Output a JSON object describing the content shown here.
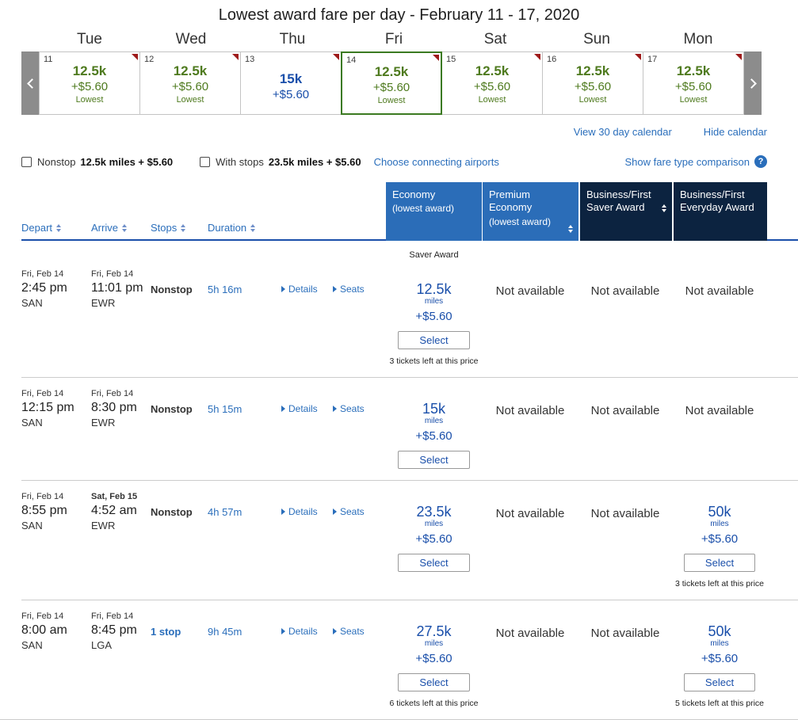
{
  "colors": {
    "fare_green": "#4e7a1e",
    "fare_blue": "#1a4faa",
    "link_blue": "#2a6ebb",
    "header_blue": "#2b6db8",
    "header_navy": "#0c2340",
    "selected_day_green": "#3b7a21",
    "calendar_marker_red": "#9e1b1b"
  },
  "page": {
    "title": "Lowest award fare per day - February 11 - 17, 2020"
  },
  "calendar": {
    "weekdays": [
      "Tue",
      "Wed",
      "Thu",
      "Fri",
      "Sat",
      "Sun",
      "Mon"
    ],
    "days": [
      {
        "date": "11",
        "fare": "12.5k",
        "fee": "+$5.60",
        "label": "Lowest"
      },
      {
        "date": "12",
        "fare": "12.5k",
        "fee": "+$5.60",
        "label": "Lowest"
      },
      {
        "date": "13",
        "fare": "15k",
        "fee": "+$5.60",
        "label": ""
      },
      {
        "date": "14",
        "fare": "12.5k",
        "fee": "+$5.60",
        "label": "Lowest"
      },
      {
        "date": "15",
        "fare": "12.5k",
        "fee": "+$5.60",
        "label": "Lowest"
      },
      {
        "date": "16",
        "fare": "12.5k",
        "fee": "+$5.60",
        "label": "Lowest"
      },
      {
        "date": "17",
        "fare": "12.5k",
        "fee": "+$5.60",
        "label": "Lowest"
      }
    ],
    "view_30_day_link": "View 30 day calendar",
    "hide_calendar_link": "Hide calendar"
  },
  "filters": {
    "nonstop_label": "Nonstop",
    "nonstop_value": "12.5k miles + $5.60",
    "with_stops_label": "With stops",
    "with_stops_value": "23.5k miles + $5.60",
    "connecting_airports_link": "Choose connecting airports",
    "fare_comparison_link": "Show fare type comparison",
    "help_icon": "?"
  },
  "table": {
    "sort_headers": [
      "Depart",
      "Arrive",
      "Stops",
      "Duration"
    ],
    "fare_headers": [
      {
        "title": "Economy",
        "sub": "(lowest award)"
      },
      {
        "title": "Premium Economy",
        "sub": "(lowest award)"
      },
      {
        "title": "Business/First Saver Award",
        "sub": ""
      },
      {
        "title": "Business/First Everyday Award",
        "sub": ""
      }
    ],
    "not_available": "Not available",
    "select_label": "Select",
    "miles_label": "miles",
    "rows": [
      {
        "depart": {
          "date": "Fri, Feb 14",
          "time": "2:45 pm",
          "airport": "SAN"
        },
        "arrive": {
          "date": "Fri, Feb 14",
          "time": "11:01 pm",
          "airport": "EWR"
        },
        "stops": "Nonstop",
        "duration": "5h 16m",
        "details_link": "Details",
        "seats_link": "Seats",
        "economy": {
          "tag": "Saver Award",
          "miles": "12.5k",
          "fee": "+$5.60",
          "note": "3 tickets left at this price"
        }
      },
      {
        "depart": {
          "date": "Fri, Feb 14",
          "time": "12:15 pm",
          "airport": "SAN"
        },
        "arrive": {
          "date": "Fri, Feb 14",
          "time": "8:30 pm",
          "airport": "EWR"
        },
        "stops": "Nonstop",
        "duration": "5h 15m",
        "details_link": "Details",
        "seats_link": "Seats",
        "economy": {
          "miles": "15k",
          "fee": "+$5.60"
        }
      },
      {
        "depart": {
          "date": "Fri, Feb 14",
          "time": "8:55 pm",
          "airport": "SAN"
        },
        "arrive": {
          "date": "Sat, Feb 15",
          "time": "4:52 am",
          "airport": "EWR"
        },
        "stops": "Nonstop",
        "duration": "4h 57m",
        "details_link": "Details",
        "seats_link": "Seats",
        "economy": {
          "miles": "23.5k",
          "fee": "+$5.60"
        },
        "business_everyday": {
          "miles": "50k",
          "fee": "+$5.60",
          "note": "3 tickets left at this price"
        }
      },
      {
        "depart": {
          "date": "Fri, Feb 14",
          "time": "8:00 am",
          "airport": "SAN"
        },
        "arrive": {
          "date": "Fri, Feb 14",
          "time": "8:45 pm",
          "airport": "LGA"
        },
        "stops": "1 stop",
        "duration": "9h 45m",
        "details_link": "Details",
        "seats_link": "Seats",
        "economy": {
          "miles": "27.5k",
          "fee": "+$5.60",
          "note": "6 tickets left at this price"
        },
        "business_everyday": {
          "miles": "50k",
          "fee": "+$5.60",
          "note": "5 tickets left at this price"
        }
      }
    ]
  }
}
